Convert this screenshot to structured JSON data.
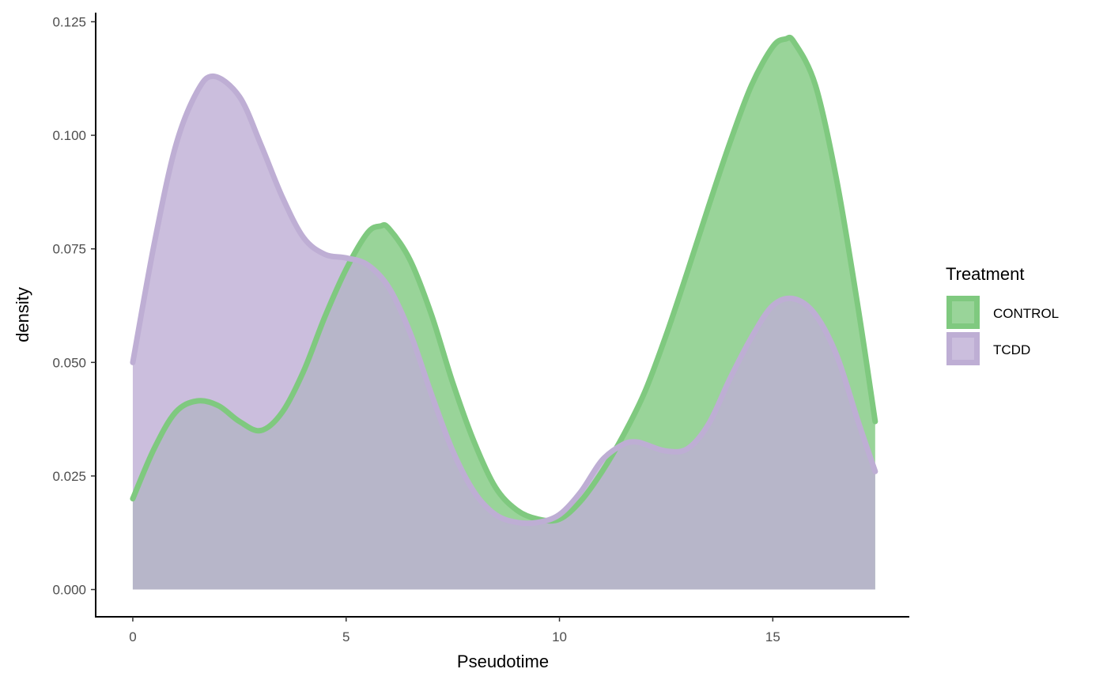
{
  "chart_data": {
    "type": "area",
    "xlabel": "Pseudotime",
    "ylabel": "density",
    "xlim": [
      -0.87,
      18.2
    ],
    "ylim": [
      -0.006,
      0.127
    ],
    "x_ticks": [
      0,
      5,
      10,
      15
    ],
    "y_ticks": [
      0.0,
      0.025,
      0.05,
      0.075,
      0.1,
      0.125
    ],
    "x_tick_labels": [
      "0",
      "5",
      "10",
      "15"
    ],
    "y_tick_labels": [
      "0.000",
      "0.025",
      "0.050",
      "0.075",
      "0.100",
      "0.125"
    ],
    "grid": false,
    "legend": {
      "title": "Treatment",
      "position": "right"
    },
    "series": [
      {
        "name": "CONTROL",
        "line_color": "#7fc97f",
        "fill_color": "#7fc97f",
        "fill_opacity": 0.8,
        "x": [
          0.0,
          0.5,
          1.0,
          1.5,
          2.0,
          2.5,
          3.0,
          3.5,
          4.0,
          4.5,
          5.0,
          5.5,
          5.8,
          6.0,
          6.5,
          7.0,
          7.5,
          8.0,
          8.5,
          9.0,
          9.5,
          10.0,
          10.5,
          11.0,
          11.5,
          12.0,
          12.5,
          13.0,
          13.5,
          14.0,
          14.5,
          15.0,
          15.3,
          15.5,
          16.0,
          16.5,
          17.0,
          17.4
        ],
        "y": [
          0.02,
          0.031,
          0.039,
          0.0415,
          0.0405,
          0.037,
          0.035,
          0.039,
          0.048,
          0.06,
          0.0705,
          0.0785,
          0.08,
          0.0795,
          0.0725,
          0.0605,
          0.0455,
          0.0325,
          0.0225,
          0.0175,
          0.0155,
          0.0155,
          0.0195,
          0.026,
          0.034,
          0.0435,
          0.056,
          0.07,
          0.0845,
          0.0985,
          0.111,
          0.1195,
          0.1212,
          0.1205,
          0.111,
          0.09,
          0.062,
          0.037
        ]
      },
      {
        "name": "TCDD",
        "line_color": "#beaed4",
        "fill_color": "#beaed4",
        "fill_opacity": 0.8,
        "x": [
          0.0,
          0.5,
          1.0,
          1.5,
          1.9,
          2.5,
          3.0,
          3.5,
          4.0,
          4.5,
          5.0,
          5.5,
          6.0,
          6.5,
          7.0,
          7.5,
          8.0,
          8.5,
          9.0,
          9.5,
          10.0,
          10.5,
          11.0,
          11.5,
          11.8,
          12.0,
          12.5,
          13.0,
          13.5,
          14.0,
          14.5,
          15.0,
          15.5,
          16.0,
          16.5,
          17.0,
          17.4
        ],
        "y": [
          0.05,
          0.076,
          0.0975,
          0.1095,
          0.113,
          0.1085,
          0.098,
          0.0865,
          0.0775,
          0.0738,
          0.073,
          0.0715,
          0.0665,
          0.0565,
          0.043,
          0.0305,
          0.0215,
          0.0165,
          0.0148,
          0.0148,
          0.0165,
          0.0215,
          0.0285,
          0.032,
          0.0325,
          0.032,
          0.0305,
          0.031,
          0.0365,
          0.0465,
          0.0555,
          0.0625,
          0.064,
          0.0605,
          0.0515,
          0.037,
          0.026
        ]
      }
    ]
  }
}
